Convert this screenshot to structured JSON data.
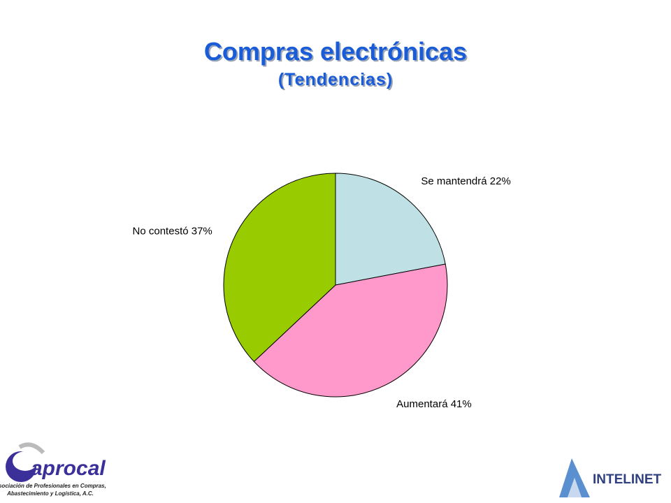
{
  "chart_data": {
    "type": "pie",
    "title": "Compras electrónicas",
    "subtitle": "(Tendencias)",
    "categories": [
      "Se mantendrá",
      "Aumentará",
      "No contestó"
    ],
    "values": [
      22,
      41,
      37
    ],
    "value_labels": [
      "22%",
      "41%",
      "37%"
    ],
    "colors": [
      "#bfe1e5",
      "#ff99cc",
      "#99cc00"
    ]
  },
  "footer": {
    "left_logo": "aprocal",
    "left_caption": [
      "Asociación de Profesionales en Compras,",
      "Abastecimiento y Logística, A.C."
    ],
    "right_logo": "INTELINET"
  }
}
